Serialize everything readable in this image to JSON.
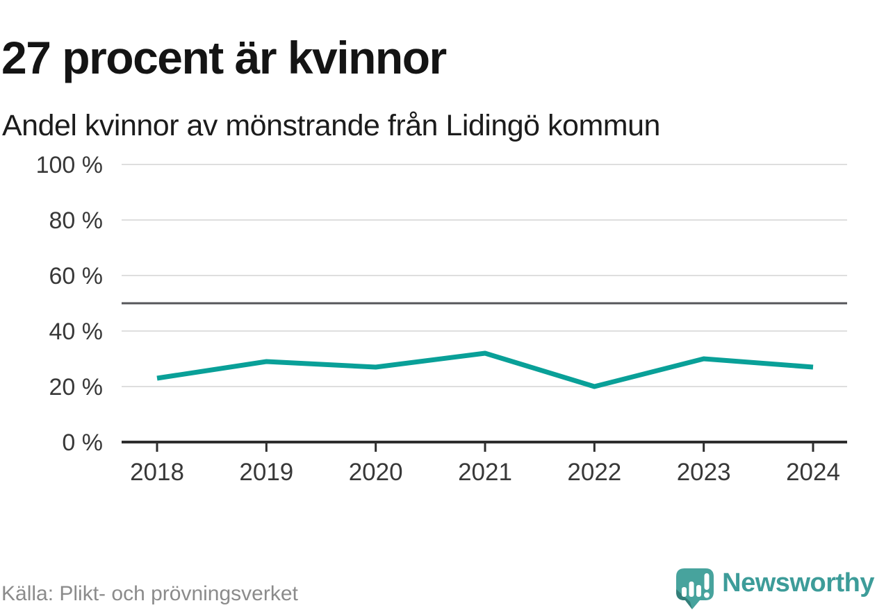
{
  "header": {
    "title": "27 procent är kvinnor",
    "subtitle": "Andel kvinnor av mönstrande från Lidingö kommun"
  },
  "footer": {
    "source": "Källa: Plikt- och prövningsverket",
    "brand": "Newsworthy"
  },
  "colors": {
    "line": "#09a098",
    "grid": "#dedede",
    "reference": "#55565a",
    "axis": "#2e2e2e",
    "tick_label": "#383838",
    "logo_teal": "#47a39d",
    "logo_fold": "#337e79",
    "brand_text": "#3d9c99"
  },
  "chart_data": {
    "type": "line",
    "title": "27 procent är kvinnor",
    "subtitle": "Andel kvinnor av mönstrande från Lidingö kommun",
    "categories": [
      "2018",
      "2019",
      "2020",
      "2021",
      "2022",
      "2023",
      "2024"
    ],
    "series": [
      {
        "name": "Andel kvinnor av mönstrande, Lidingö kommun",
        "values": [
          23,
          29,
          27,
          32,
          20,
          30,
          27
        ]
      }
    ],
    "xlabel": "",
    "ylabel": "",
    "ylim": [
      0,
      100
    ],
    "yticks": [
      0,
      20,
      40,
      60,
      80,
      100
    ],
    "ytick_format": "{v} %",
    "reference_line": 50,
    "grid": "horizontal",
    "legend": "none",
    "unit": "%"
  }
}
